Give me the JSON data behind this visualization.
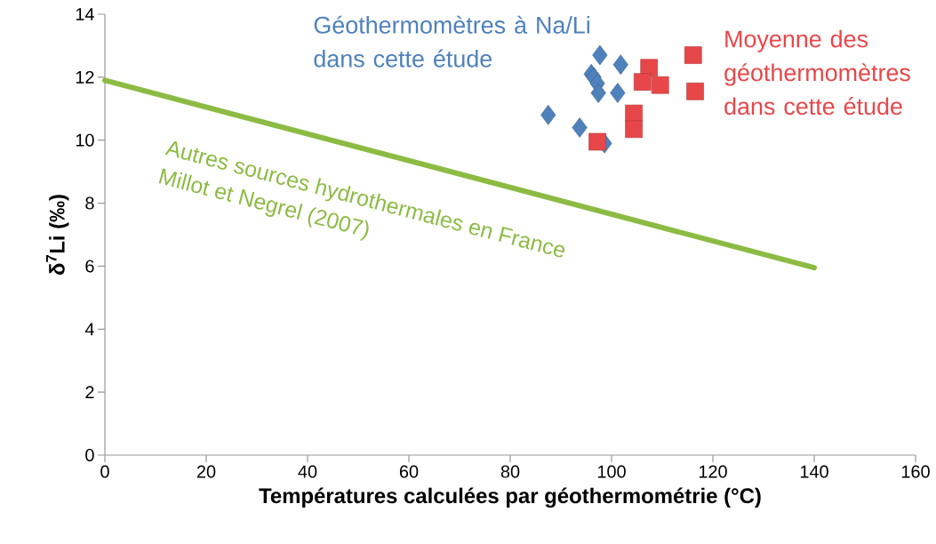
{
  "chart_data": {
    "type": "scatter",
    "xlabel": "Températures calculées par géothermométrie (°C)",
    "ylabel": "δ$^{7}$Li (‰)",
    "xlim": [
      0,
      160
    ],
    "ylim": [
      0,
      14
    ],
    "xticks": [
      0,
      20,
      40,
      60,
      80,
      100,
      120,
      140,
      160
    ],
    "yticks": [
      0,
      2,
      4,
      6,
      8,
      10,
      12,
      14
    ],
    "grid": false,
    "series": [
      {
        "name": "Géothermomètres à Na/Li dans cette étude",
        "color": "#4f81bd",
        "marker": "diamond",
        "x": [
          97.7,
          101.8,
          96.0,
          96.5,
          97.2,
          97.4,
          101.2,
          87.5,
          93.7,
          98.6
        ],
        "values": [
          12.7,
          12.4,
          12.1,
          12.0,
          11.8,
          11.5,
          11.5,
          10.8,
          10.4,
          9.9
        ]
      },
      {
        "name": "Moyenne des géothermomètres dans cette étude",
        "color": "#e8474a",
        "marker": "square",
        "x": [
          116.1,
          107.4,
          106.1,
          109.6,
          116.5,
          104.4,
          104.4,
          97.2
        ],
        "values": [
          12.7,
          12.3,
          11.85,
          11.75,
          11.55,
          10.85,
          10.35,
          9.95
        ]
      },
      {
        "name": "Autres sources hydrothermales en France",
        "type": "line",
        "color": "#8cbb44",
        "marker": "none",
        "line_style": "solid",
        "x": [
          0,
          140
        ],
        "values": [
          11.9,
          5.95
        ]
      }
    ],
    "annotations": [
      "Millot et Negrel (2007)"
    ]
  }
}
